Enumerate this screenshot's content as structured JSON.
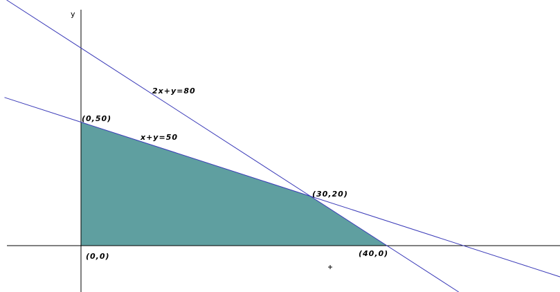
{
  "axes": {
    "y_label": "y"
  },
  "constraints": [
    {
      "id": "c1",
      "label": "2x+y=80",
      "a": 2,
      "b": 1,
      "c": 80
    },
    {
      "id": "c2",
      "label": "x+y=50",
      "a": 1,
      "b": 1,
      "c": 50
    }
  ],
  "feasible_region": {
    "vertices": [
      [
        0,
        0
      ],
      [
        0,
        50
      ],
      [
        30,
        20
      ],
      [
        40,
        0
      ]
    ]
  },
  "points": [
    {
      "label": "(0,50)",
      "x": 0,
      "y": 50
    },
    {
      "label": "(30,20)",
      "x": 30,
      "y": 20
    },
    {
      "label": "(40,0)",
      "x": 40,
      "y": 0
    },
    {
      "label": "(0,0)",
      "x": 0,
      "y": 0
    }
  ],
  "colors": {
    "constraint_line": "#3a3ab8",
    "feasible_fill": "#5f9fa0",
    "axis": "#000000"
  }
}
